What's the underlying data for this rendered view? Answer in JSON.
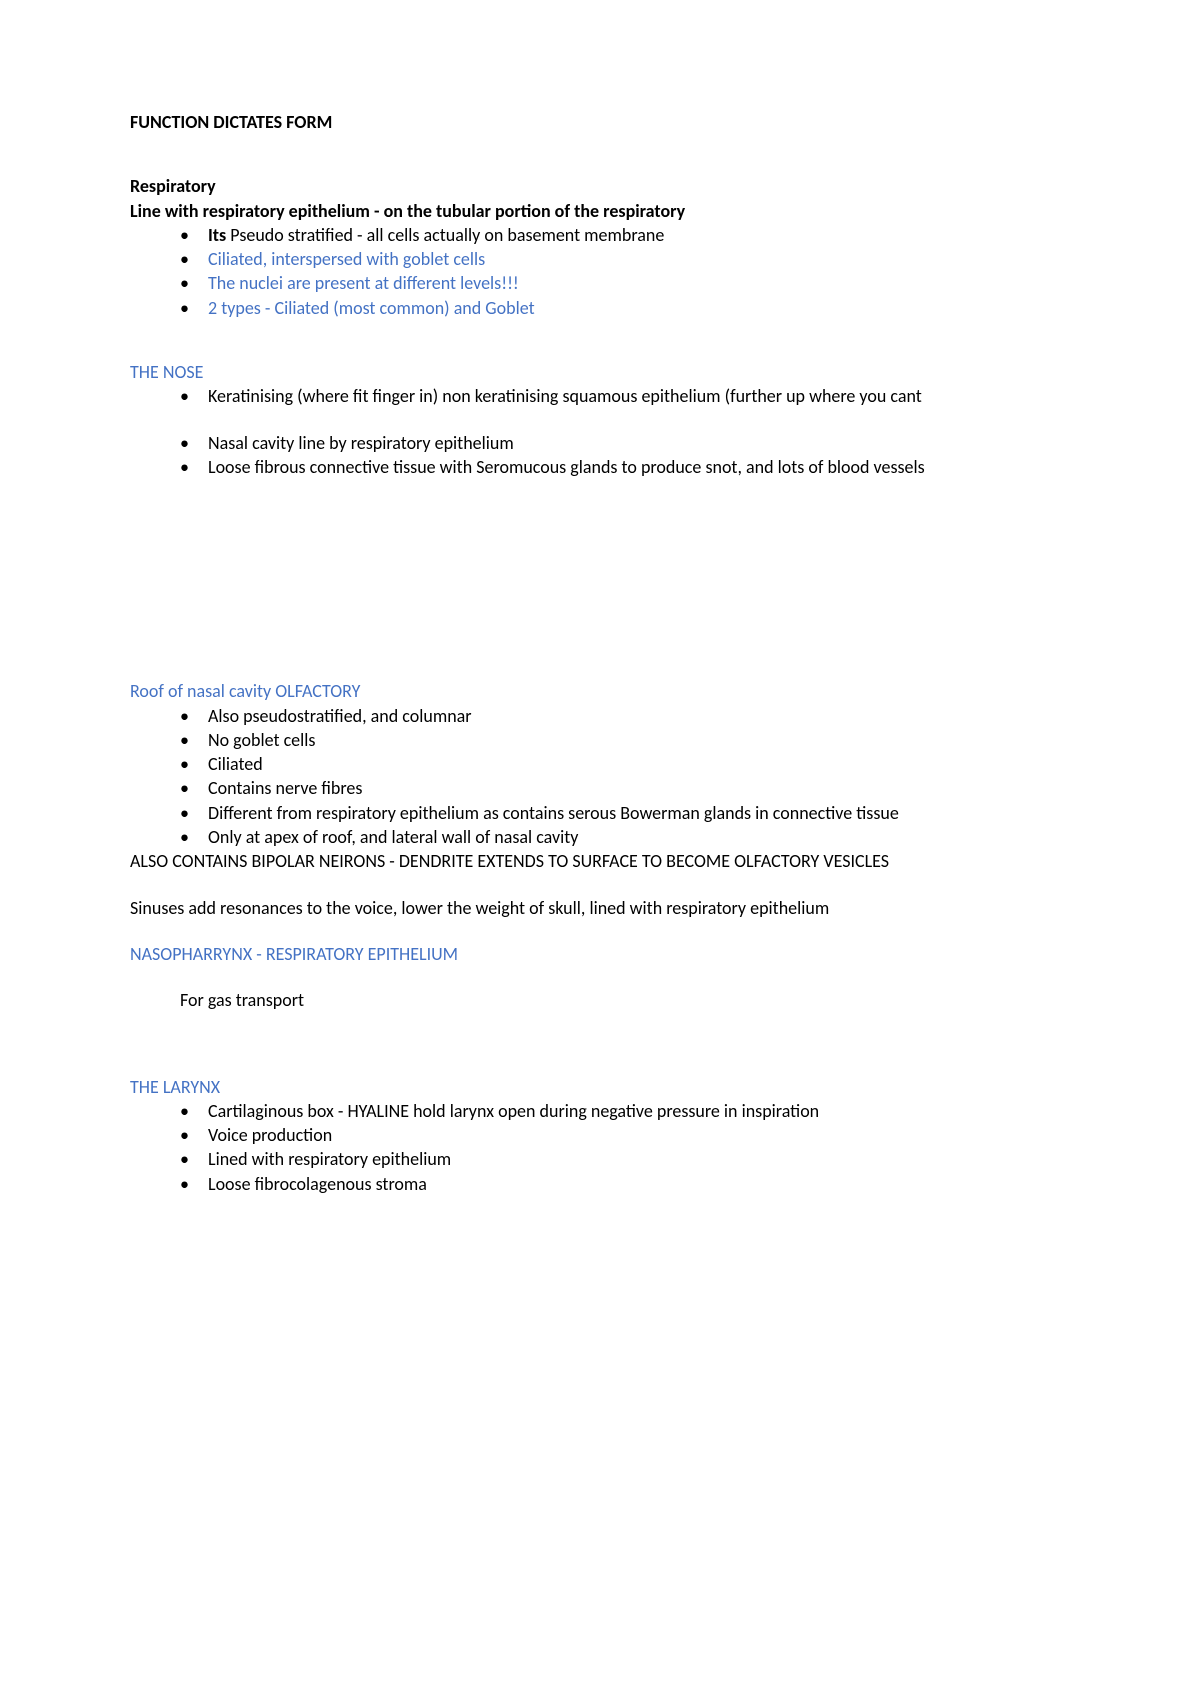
{
  "colors": {
    "text": "#000000",
    "blue": "#4472c4",
    "background": "#ffffff"
  },
  "typography": {
    "font_family": "Calibri, Arial, sans-serif",
    "font_size_pt": 13,
    "line_height": 1.35
  },
  "title": "FUNCTION DICTATES FORM",
  "respiratory": {
    "heading1": "Respiratory",
    "heading2": "Line with respiratory epithelium - on the tubular portion of the respiratory",
    "bullets": [
      {
        "prefix_bold": "Its",
        "rest": " Pseudo stratified - all cells actually on basement membrane",
        "color": "black"
      },
      {
        "text": "Ciliated, interspersed with goblet cells",
        "color": "blue"
      },
      {
        "text": "The nuclei are present at different levels!!!",
        "color": "blue"
      },
      {
        "text": "2 types - Ciliated (most common) and Goblet",
        "color": "blue"
      }
    ]
  },
  "nose": {
    "heading": "THE NOSE",
    "group1": [
      "Keratinising (where fit finger in)  non keratinising squamous epithelium (further up where you cant"
    ],
    "group2": [
      "Nasal cavity line by respiratory epithelium",
      "Loose fibrous connective tissue with Seromucous glands to produce snot, and lots of blood vessels"
    ]
  },
  "olfactory": {
    "heading": "Roof of nasal cavity  OLFACTORY",
    "bullets": [
      "Also pseudostratified, and columnar",
      "No goblet cells",
      "Ciliated",
      "Contains nerve fibres",
      "Different from respiratory epithelium as contains serous Bowerman glands in connective tissue",
      "Only at apex of roof, and lateral wall of nasal cavity"
    ],
    "after1": "ALSO CONTAINS BIPOLAR NEIRONS - DENDRITE EXTENDS TO SURFACE TO BECOME OLFACTORY VESICLES",
    "after2": "Sinuses add resonances to the voice, lower the weight of skull, lined with respiratory epithelium"
  },
  "nasopharynx": {
    "heading": "NASOPHARRYNX - RESPIRATORY EPITHELIUM",
    "body": "For gas transport"
  },
  "larynx": {
    "heading": "THE LARYNX",
    "bullets": [
      "Cartilaginous box - HYALINE hold larynx open during negative pressure in inspiration",
      "Voice production",
      "Lined with respiratory epithelium",
      "Loose fibrocolagenous stroma"
    ]
  }
}
